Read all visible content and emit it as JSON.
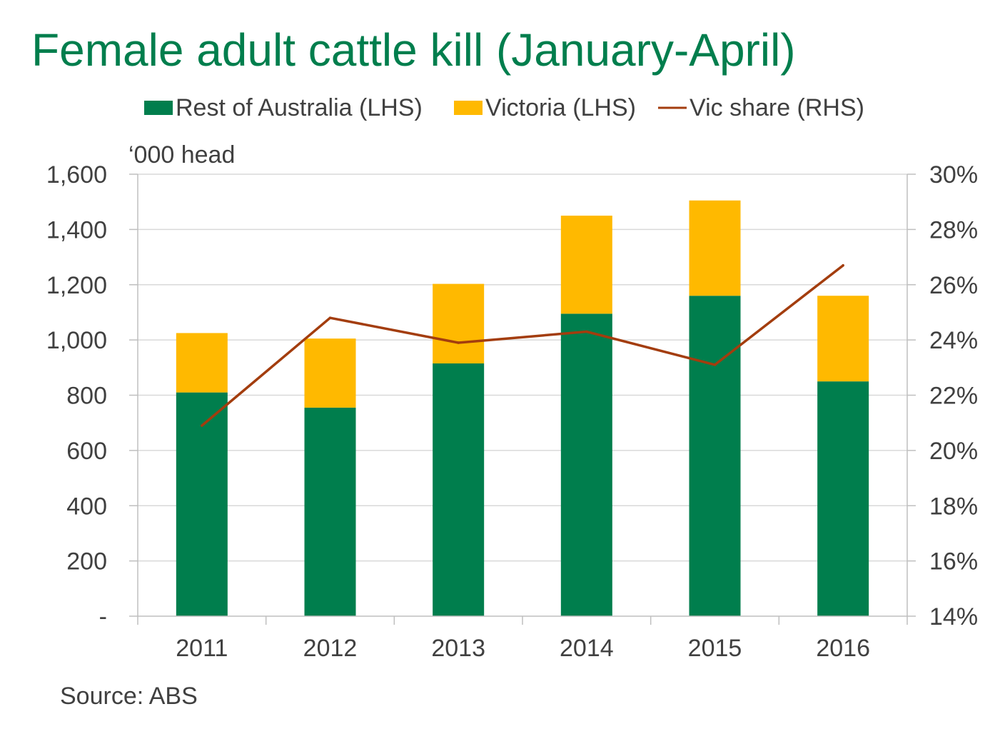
{
  "chart_data": {
    "type": "bar",
    "stacked": true,
    "title": "Female adult cattle kill (January-April)",
    "unit_label": "‘000 head",
    "source": "Source: ABS",
    "categories": [
      "2011",
      "2012",
      "2013",
      "2014",
      "2015",
      "2016"
    ],
    "series": [
      {
        "name": "Rest of Australia (LHS)",
        "kind": "bar",
        "axis": "left",
        "color": "#007e4d",
        "values": [
          810,
          755,
          915,
          1095,
          1160,
          850
        ]
      },
      {
        "name": "Victoria (LHS)",
        "kind": "bar",
        "axis": "left",
        "color": "#ffb900",
        "values": [
          215,
          250,
          288,
          355,
          345,
          310
        ]
      },
      {
        "name": "Vic share (RHS)",
        "kind": "line",
        "axis": "right",
        "color": "#a33d0e",
        "values": [
          0.209,
          0.248,
          0.239,
          0.243,
          0.231,
          0.267
        ]
      }
    ],
    "y_left": {
      "min": 0,
      "max": 1600,
      "ticks": [
        {
          "v": 0,
          "label": "-"
        },
        {
          "v": 200,
          "label": "200"
        },
        {
          "v": 400,
          "label": "400"
        },
        {
          "v": 600,
          "label": "600"
        },
        {
          "v": 800,
          "label": "800"
        },
        {
          "v": 1000,
          "label": "1,000"
        },
        {
          "v": 1200,
          "label": "1,200"
        },
        {
          "v": 1400,
          "label": "1,400"
        },
        {
          "v": 1600,
          "label": "1,600"
        }
      ]
    },
    "y_right": {
      "min": 0.14,
      "max": 0.3,
      "ticks": [
        {
          "v": 0.14,
          "label": "14%"
        },
        {
          "v": 0.16,
          "label": "16%"
        },
        {
          "v": 0.18,
          "label": "18%"
        },
        {
          "v": 0.2,
          "label": "20%"
        },
        {
          "v": 0.22,
          "label": "22%"
        },
        {
          "v": 0.24,
          "label": "24%"
        },
        {
          "v": 0.26,
          "label": "26%"
        },
        {
          "v": 0.28,
          "label": "28%"
        },
        {
          "v": 0.3,
          "label": "30%"
        }
      ]
    },
    "grid": true,
    "legend_position": "top-center",
    "colors": {
      "title": "#007e4d",
      "grid": "#d9d9d9",
      "axis": "#bfbfbf",
      "text": "#404040"
    }
  }
}
